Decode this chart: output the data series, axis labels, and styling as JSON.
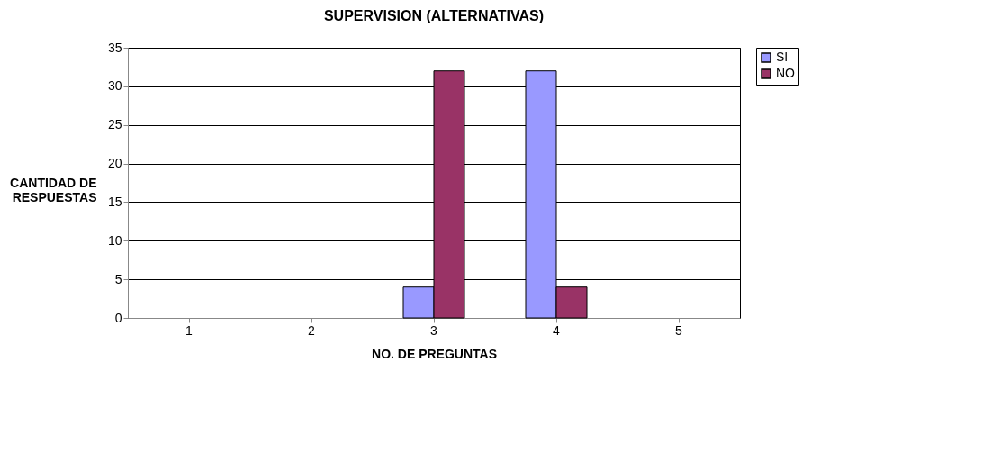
{
  "chart_data": {
    "type": "bar",
    "title": "SUPERVISION (ALTERNATIVAS)",
    "xlabel": "NO. DE PREGUNTAS",
    "ylabel": "CANTIDAD DE RESPUESTAS",
    "categories": [
      "1",
      "2",
      "3",
      "4",
      "5"
    ],
    "series": [
      {
        "name": "SI",
        "color": "#9999ff",
        "values": [
          null,
          null,
          4,
          32,
          null
        ]
      },
      {
        "name": "NO",
        "color": "#993366",
        "values": [
          null,
          null,
          32,
          4,
          null
        ]
      }
    ],
    "ylim": [
      0,
      35
    ],
    "yticks": [
      0,
      5,
      10,
      15,
      20,
      25,
      30,
      35
    ],
    "grid": "y",
    "legend": "right"
  }
}
